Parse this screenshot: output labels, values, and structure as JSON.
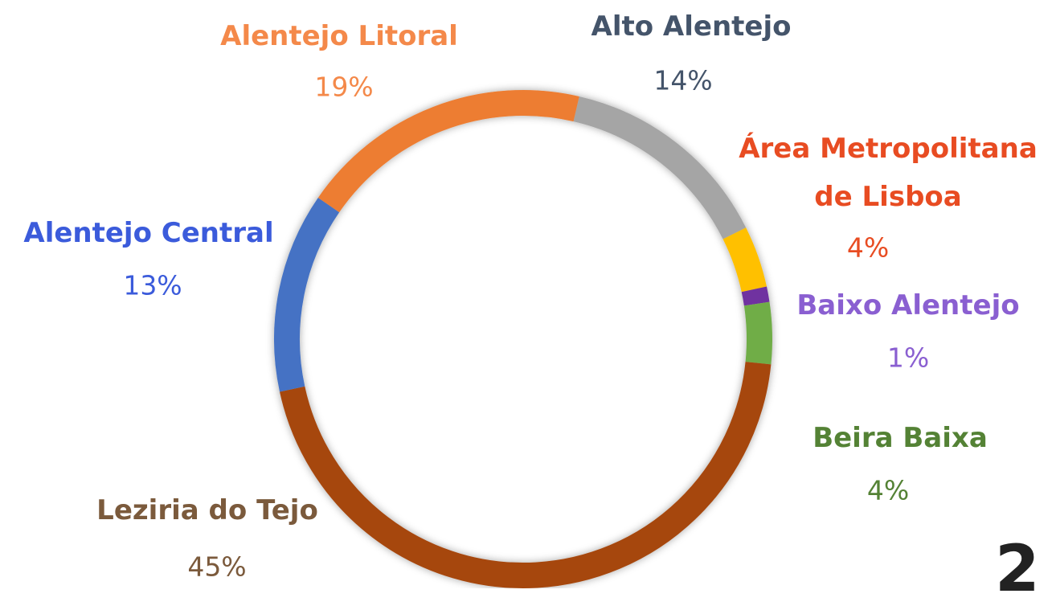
{
  "chart_data": {
    "type": "donut",
    "categories": [
      "Alto Alentejo",
      "Área Metropolitana de Lisboa",
      "Baixo Alentejo",
      "Beira Baixa",
      "Leziria do Tejo",
      "Alentejo Central",
      "Alentejo Litoral"
    ],
    "values": [
      14,
      4,
      1,
      4,
      45,
      13,
      19
    ],
    "value_labels": [
      "14%",
      "4%",
      "1%",
      "4%",
      "45%",
      "13%",
      "19%"
    ],
    "colors": [
      "#a5a5a5",
      "#ffc000",
      "#7030a0",
      "#70ad47",
      "#a6470e",
      "#4472c4",
      "#ed7d31"
    ],
    "label_colors": [
      "#44546a",
      "#e84c22",
      "#8a5fd1",
      "#548235",
      "#7b5a3c",
      "#3b5bdb",
      "#f4894a"
    ]
  },
  "page_number": "2"
}
